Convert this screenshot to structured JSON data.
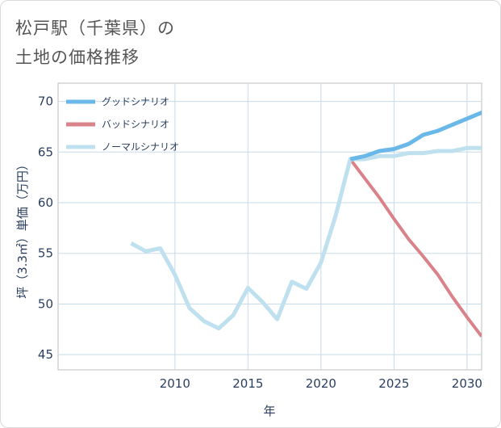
{
  "page": {
    "title_line1": "松戸駅（千葉県）の",
    "title_line2": "土地の価格推移"
  },
  "chart_data": {
    "type": "line",
    "xlabel": "年",
    "ylabel": "坪（3.3㎡）単価（万円）",
    "xlim": [
      2002.0,
      2031.0
    ],
    "ylim": [
      43.5,
      71.8
    ],
    "xticks": [
      2010,
      2015,
      2020,
      2025,
      2030
    ],
    "yticks": [
      45,
      50,
      55,
      60,
      65,
      70
    ],
    "grid": true,
    "legend_position": "top-left",
    "series": [
      {
        "name": "グッドシナリオ",
        "color": "#6ab8ea",
        "width": 5,
        "points": [
          [
            2022,
            64.3
          ],
          [
            2023,
            64.6
          ],
          [
            2024,
            65.1
          ],
          [
            2025,
            65.3
          ],
          [
            2026,
            65.8
          ],
          [
            2027,
            66.7
          ],
          [
            2028,
            67.1
          ],
          [
            2029,
            67.7
          ],
          [
            2030,
            68.3
          ],
          [
            2031,
            68.9
          ],
          [
            2031.5,
            69.3
          ]
        ]
      },
      {
        "name": "バッドシナリオ",
        "color": "#d9828a",
        "width": 4,
        "points": [
          [
            2022,
            64.3
          ],
          [
            2023,
            62.4
          ],
          [
            2024,
            60.5
          ],
          [
            2025,
            58.4
          ],
          [
            2026,
            56.4
          ],
          [
            2027,
            54.7
          ],
          [
            2028,
            52.9
          ],
          [
            2029,
            50.7
          ],
          [
            2030,
            48.7
          ],
          [
            2031,
            46.8
          ]
        ]
      },
      {
        "name": "ノーマルシナリオ",
        "color": "#bfe0ee",
        "width": 5,
        "points": [
          [
            2007,
            56.0
          ],
          [
            2008,
            55.2
          ],
          [
            2009,
            55.5
          ],
          [
            2010,
            52.9
          ],
          [
            2011,
            49.6
          ],
          [
            2012,
            48.3
          ],
          [
            2013,
            47.6
          ],
          [
            2014,
            48.9
          ],
          [
            2015,
            51.6
          ],
          [
            2016,
            50.2
          ],
          [
            2017,
            48.5
          ],
          [
            2018,
            52.2
          ],
          [
            2019,
            51.5
          ],
          [
            2020,
            54.1
          ],
          [
            2021,
            58.7
          ],
          [
            2022,
            64.3
          ],
          [
            2023,
            64.3
          ],
          [
            2024,
            64.6
          ],
          [
            2025,
            64.6
          ],
          [
            2026,
            64.9
          ],
          [
            2027,
            64.9
          ],
          [
            2028,
            65.1
          ],
          [
            2029,
            65.1
          ],
          [
            2030,
            65.4
          ],
          [
            2031,
            65.4
          ]
        ]
      }
    ]
  }
}
